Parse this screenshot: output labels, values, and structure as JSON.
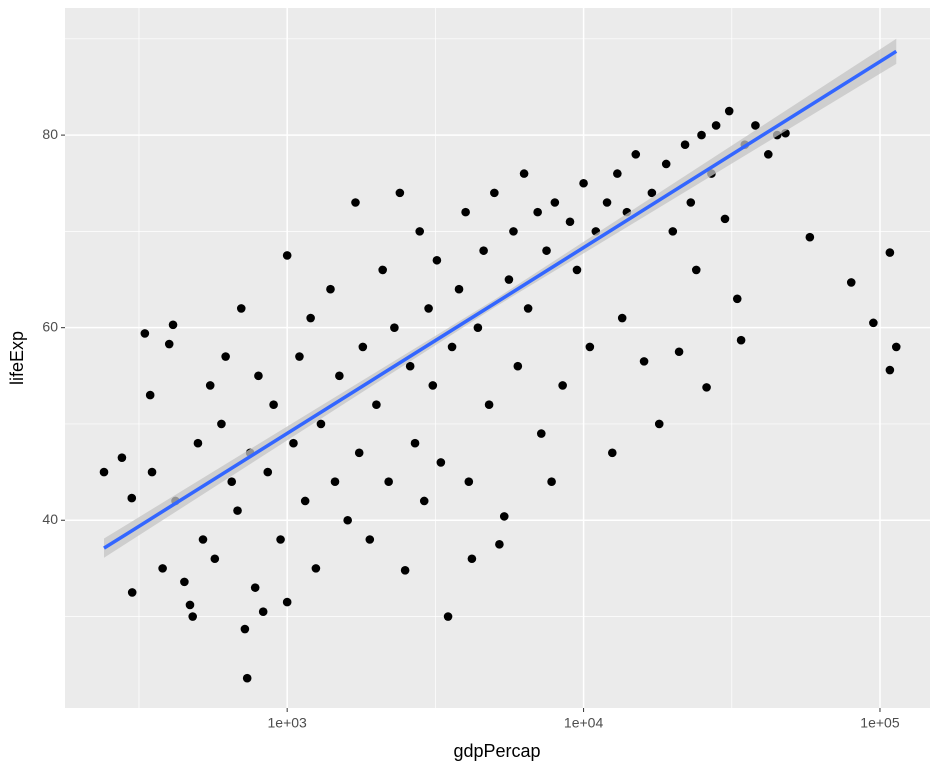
{
  "chart_data": {
    "type": "scatter",
    "x_label": "gdpPercap",
    "y_label": "lifeExp",
    "xscale": "log",
    "grid": true,
    "panel_color": "#ebebeb",
    "point_color": "#000000",
    "xlim": [
      178,
      147500
    ],
    "ylim": [
      20.5,
      93.2
    ],
    "xticks": [
      {
        "value": 1000,
        "label": "1e+03"
      },
      {
        "value": 10000,
        "label": "1e+04"
      },
      {
        "value": 100000,
        "label": "1e+05"
      }
    ],
    "yticks": [
      40,
      60,
      80
    ],
    "x_minor_grid": [
      316.2,
      3162,
      31623
    ],
    "y_minor_grid": [
      30,
      50,
      70,
      90
    ],
    "x": [
      241,
      277,
      300,
      299,
      331,
      345,
      350,
      380,
      400,
      412,
      420,
      450,
      470,
      480,
      500,
      520,
      550,
      570,
      600,
      620,
      650,
      680,
      700,
      720,
      733,
      750,
      780,
      800,
      830,
      860,
      900,
      950,
      1000,
      1000,
      1050,
      1100,
      1150,
      1200,
      1250,
      1300,
      1400,
      1450,
      1500,
      1600,
      1700,
      1750,
      1800,
      1900,
      2000,
      2100,
      2200,
      2300,
      2400,
      2500,
      2600,
      2700,
      2800,
      2900,
      3000,
      3100,
      3200,
      3300,
      3490,
      3600,
      3800,
      4000,
      4100,
      4200,
      4400,
      4600,
      4800,
      5000,
      5200,
      5400,
      5600,
      5800,
      6000,
      6300,
      6500,
      7000,
      7200,
      7500,
      7800,
      8000,
      8500,
      9000,
      9500,
      10000,
      10500,
      11000,
      12000,
      12500,
      13000,
      13500,
      14000,
      15000,
      16000,
      17000,
      18000,
      19000,
      20000,
      21000,
      22000,
      23000,
      24000,
      25000,
      26000,
      27000,
      28000,
      30000,
      31000,
      33000,
      34000,
      35000,
      38000,
      42000,
      45000,
      48000,
      58000,
      80000,
      95000,
      108000,
      108000,
      113500
    ],
    "y": [
      45,
      46.5,
      32.5,
      42.3,
      59.4,
      53,
      45,
      35,
      58.3,
      60.3,
      42,
      33.6,
      31.2,
      30,
      48,
      38,
      54,
      36,
      50,
      57,
      44,
      41,
      62,
      28.7,
      23.6,
      47,
      33,
      55,
      30.5,
      45,
      52,
      38,
      67.5,
      31.5,
      48,
      57,
      42,
      61,
      35,
      50,
      64,
      44,
      55,
      40,
      73,
      47,
      58,
      38,
      52,
      66,
      44,
      60,
      74,
      34.8,
      56,
      48,
      70,
      42,
      62,
      54,
      67,
      46,
      30,
      58,
      64,
      72,
      44,
      36,
      60,
      68,
      52,
      74,
      37.5,
      40.4,
      65,
      70,
      56,
      76,
      62,
      72,
      49,
      68,
      44,
      73,
      54,
      71,
      66,
      75,
      58,
      70,
      73,
      47,
      76,
      61,
      72,
      78,
      56.5,
      74,
      50,
      77,
      70,
      57.5,
      79,
      73,
      66,
      80,
      53.8,
      76,
      81,
      71.3,
      82.5,
      63,
      58.7,
      79,
      81,
      78,
      80,
      80.2,
      69.4,
      64.7,
      60.5,
      55.6,
      67.8,
      58
    ],
    "fit": {
      "color": "#3366ff",
      "ribbon_color": "#c4c4c4",
      "x": [
        241,
        5000,
        113500
      ],
      "y": [
        37.1,
        62.5,
        88.7
      ],
      "lower": [
        36.1,
        62.1,
        87.4
      ],
      "upper": [
        38.1,
        62.9,
        90.0
      ]
    }
  }
}
